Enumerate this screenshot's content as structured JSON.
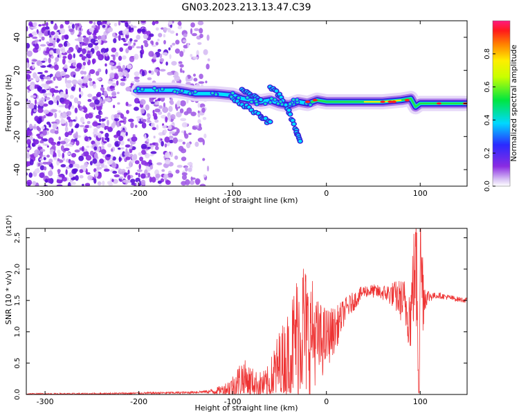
{
  "chart_data": [
    {
      "type": "heatmap",
      "title": "GN03.2023.213.13.47.C39",
      "xlabel": "Height of straight line (km)",
      "ylabel": "Frequency (Hz)",
      "xlim": [
        -320,
        150
      ],
      "ylim": [
        -50,
        50
      ],
      "xticks": [
        -300,
        -200,
        -100,
        0,
        100
      ],
      "yticks": [
        -40,
        -20,
        0,
        20,
        40
      ],
      "colorbar": {
        "label": "Normalized spectral amplitude",
        "range": [
          0,
          1
        ],
        "ticks": [
          "0.0",
          "0.2",
          "0.4",
          "0.6",
          "0.8"
        ]
      },
      "track": [
        [
          -200,
          8
        ],
        [
          -180,
          8
        ],
        [
          -160,
          8
        ],
        [
          -140,
          6
        ],
        [
          -120,
          6
        ],
        [
          -100,
          5
        ],
        [
          -90,
          3
        ],
        [
          -80,
          2
        ],
        [
          -70,
          1
        ],
        [
          -60,
          2
        ],
        [
          -50,
          0
        ],
        [
          -40,
          -1
        ],
        [
          -30,
          1
        ],
        [
          -20,
          0
        ],
        [
          -10,
          2
        ],
        [
          0,
          1
        ],
        [
          20,
          1
        ],
        [
          40,
          1
        ],
        [
          60,
          1
        ],
        [
          80,
          2
        ],
        [
          90,
          3
        ],
        [
          95,
          -2
        ],
        [
          100,
          0
        ],
        [
          120,
          0
        ],
        [
          150,
          0
        ]
      ],
      "branches": [
        {
          "name": "",
          "points": [
            [
              -100,
              3
            ],
            [
              -85,
              -2
            ],
            [
              -70,
              -8
            ],
            [
              -60,
              -12
            ]
          ]
        },
        {
          "name": "",
          "points": [
            [
              -60,
              10
            ],
            [
              -50,
              5
            ],
            [
              -40,
              -5
            ],
            [
              -32,
              -17
            ],
            [
              -28,
              -23
            ]
          ]
        },
        {
          "name": "",
          "points": [
            [
              -90,
              8
            ],
            [
              -80,
              5
            ],
            [
              -70,
              2
            ]
          ]
        }
      ]
    },
    {
      "type": "line",
      "xlabel": "Height of straight line (km)",
      "ylabel": "SNR (10 * v/v)",
      "y_multiplier": "(x10⁴)",
      "xlim": [
        -320,
        150
      ],
      "ylim": [
        0,
        2.65
      ],
      "xticks": [
        -300,
        -200,
        -100,
        0,
        100
      ],
      "yticks": [
        "0.0",
        "0.5",
        "1.0",
        "1.5",
        "2.0",
        "2.5"
      ],
      "series": [
        {
          "name": "",
          "color": "#ee3333",
          "x": [
            -320,
            -250,
            -200,
            -150,
            -120,
            -110,
            -100,
            -90,
            -80,
            -70,
            -60,
            -55,
            -50,
            -45,
            -40,
            -35,
            -30,
            -25,
            -20,
            -15,
            -10,
            -5,
            0,
            10,
            20,
            30,
            40,
            50,
            60,
            70,
            75,
            80,
            85,
            88,
            90,
            92,
            95,
            97,
            98,
            99,
            100,
            101,
            103,
            105,
            110,
            120,
            130,
            140,
            150
          ],
          "y": [
            0.01,
            0.01,
            0.02,
            0.03,
            0.05,
            0.08,
            0.12,
            0.25,
            0.2,
            0.15,
            0.15,
            0.35,
            0.45,
            0.5,
            0.6,
            0.8,
            1.0,
            1.1,
            0.9,
            1.0,
            0.85,
            0.85,
            0.9,
            1.05,
            1.35,
            1.5,
            1.65,
            1.65,
            1.62,
            1.6,
            1.55,
            1.5,
            1.4,
            1.3,
            1.25,
            1.7,
            2.05,
            1.6,
            0.7,
            0.3,
            2.6,
            2.0,
            1.7,
            1.55,
            1.57,
            1.58,
            1.55,
            1.52,
            1.5
          ]
        }
      ],
      "noise_amplitude": [
        [
          -320,
          0.01
        ],
        [
          -130,
          0.02
        ],
        [
          -110,
          0.08
        ],
        [
          -100,
          0.2
        ],
        [
          -90,
          0.35
        ],
        [
          -75,
          0.2
        ],
        [
          -65,
          0.25
        ],
        [
          -55,
          0.5
        ],
        [
          -40,
          0.8
        ],
        [
          -25,
          1.2
        ],
        [
          -10,
          0.7
        ],
        [
          0,
          0.5
        ],
        [
          20,
          0.2
        ],
        [
          40,
          0.1
        ],
        [
          60,
          0.12
        ],
        [
          70,
          0.2
        ],
        [
          80,
          0.35
        ],
        [
          90,
          0.6
        ],
        [
          96,
          1.0
        ],
        [
          102,
          0.9
        ],
        [
          106,
          0.15
        ],
        [
          115,
          0.05
        ],
        [
          150,
          0.04
        ]
      ]
    }
  ]
}
